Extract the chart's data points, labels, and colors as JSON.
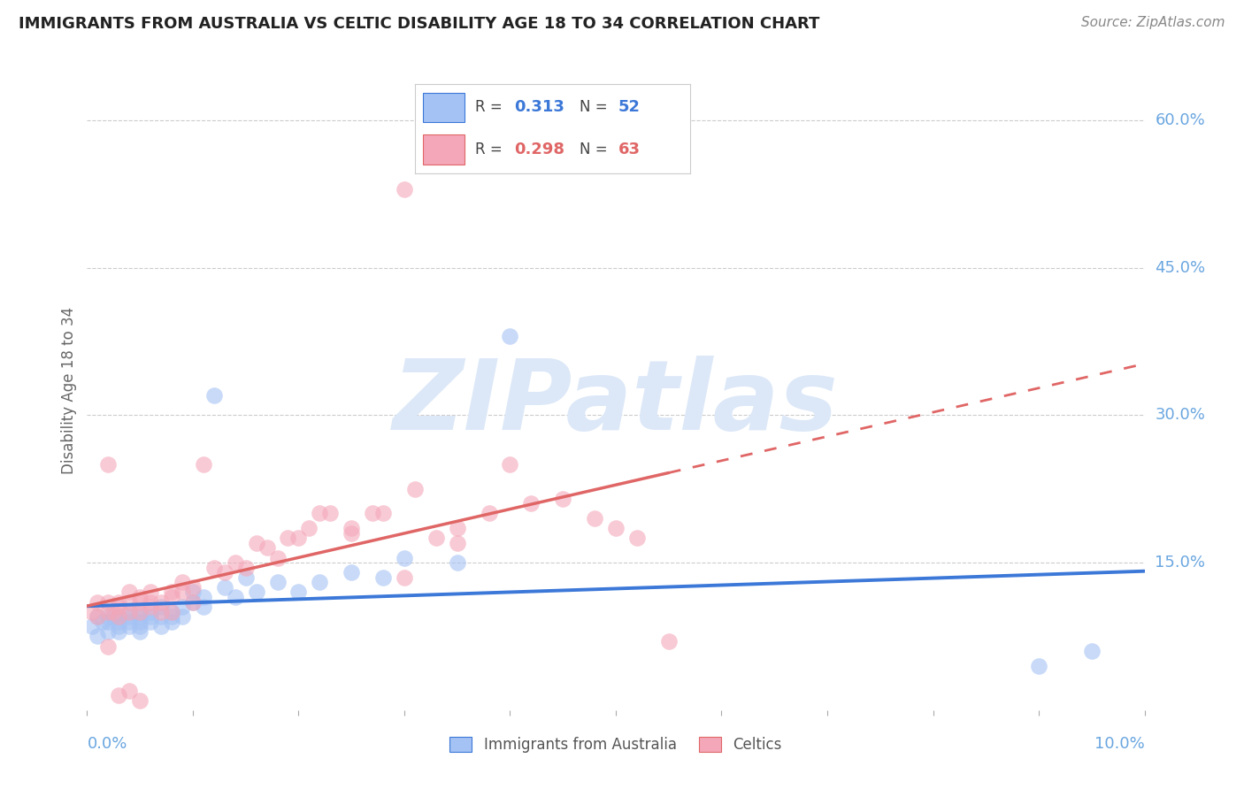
{
  "title": "IMMIGRANTS FROM AUSTRALIA VS CELTIC DISABILITY AGE 18 TO 34 CORRELATION CHART",
  "source": "Source: ZipAtlas.com",
  "ylabel": "Disability Age 18 to 34",
  "legend_label_aus": "Immigrants from Australia",
  "legend_label_cel": "Celtics",
  "r_aus": 0.313,
  "n_aus": 52,
  "r_cel": 0.298,
  "n_cel": 63,
  "color_aus": "#a4c2f4",
  "color_cel": "#f4a7b9",
  "color_aus_line": "#3c78d8",
  "color_cel_line": "#e06666",
  "color_axis_label": "#6aa6e0",
  "background": "#ffffff",
  "grid_color": "#cccccc",
  "watermark_color": "#dce8f8",
  "xlim": [
    0.0,
    0.1
  ],
  "ylim": [
    0.0,
    0.65
  ],
  "ytick_vals": [
    0.15,
    0.3,
    0.45,
    0.6
  ],
  "ytick_labels": [
    "15.0%",
    "30.0%",
    "45.0%",
    "60.0%"
  ],
  "aus_x": [
    0.0005,
    0.001,
    0.001,
    0.0015,
    0.002,
    0.002,
    0.002,
    0.0025,
    0.003,
    0.003,
    0.003,
    0.003,
    0.003,
    0.004,
    0.004,
    0.004,
    0.004,
    0.005,
    0.005,
    0.005,
    0.005,
    0.005,
    0.006,
    0.006,
    0.006,
    0.007,
    0.007,
    0.007,
    0.008,
    0.008,
    0.008,
    0.009,
    0.009,
    0.01,
    0.01,
    0.011,
    0.011,
    0.012,
    0.013,
    0.014,
    0.015,
    0.016,
    0.018,
    0.02,
    0.022,
    0.025,
    0.028,
    0.03,
    0.035,
    0.04,
    0.09,
    0.095
  ],
  "aus_y": [
    0.085,
    0.075,
    0.095,
    0.09,
    0.09,
    0.08,
    0.095,
    0.095,
    0.09,
    0.085,
    0.095,
    0.08,
    0.095,
    0.095,
    0.09,
    0.1,
    0.085,
    0.095,
    0.09,
    0.085,
    0.1,
    0.08,
    0.095,
    0.1,
    0.09,
    0.105,
    0.095,
    0.085,
    0.1,
    0.09,
    0.095,
    0.105,
    0.095,
    0.12,
    0.11,
    0.115,
    0.105,
    0.32,
    0.125,
    0.115,
    0.135,
    0.12,
    0.13,
    0.12,
    0.13,
    0.14,
    0.135,
    0.155,
    0.15,
    0.38,
    0.045,
    0.06
  ],
  "cel_x": [
    0.0005,
    0.001,
    0.001,
    0.002,
    0.002,
    0.002,
    0.0025,
    0.003,
    0.003,
    0.003,
    0.004,
    0.004,
    0.004,
    0.005,
    0.005,
    0.005,
    0.006,
    0.006,
    0.006,
    0.007,
    0.007,
    0.008,
    0.008,
    0.008,
    0.009,
    0.009,
    0.01,
    0.01,
    0.011,
    0.012,
    0.013,
    0.014,
    0.015,
    0.016,
    0.017,
    0.018,
    0.019,
    0.02,
    0.021,
    0.022,
    0.023,
    0.025,
    0.027,
    0.028,
    0.03,
    0.031,
    0.033,
    0.035,
    0.038,
    0.04,
    0.042,
    0.045,
    0.048,
    0.05,
    0.052,
    0.055,
    0.025,
    0.03,
    0.035,
    0.002,
    0.003,
    0.004,
    0.005
  ],
  "cel_y": [
    0.1,
    0.095,
    0.11,
    0.25,
    0.1,
    0.11,
    0.1,
    0.095,
    0.11,
    0.105,
    0.11,
    0.1,
    0.12,
    0.11,
    0.1,
    0.115,
    0.11,
    0.105,
    0.12,
    0.11,
    0.1,
    0.12,
    0.115,
    0.1,
    0.13,
    0.12,
    0.125,
    0.11,
    0.25,
    0.145,
    0.14,
    0.15,
    0.145,
    0.17,
    0.165,
    0.155,
    0.175,
    0.175,
    0.185,
    0.2,
    0.2,
    0.185,
    0.2,
    0.2,
    0.53,
    0.225,
    0.175,
    0.185,
    0.2,
    0.25,
    0.21,
    0.215,
    0.195,
    0.185,
    0.175,
    0.07,
    0.18,
    0.135,
    0.17,
    0.065,
    0.015,
    0.02,
    0.01
  ]
}
